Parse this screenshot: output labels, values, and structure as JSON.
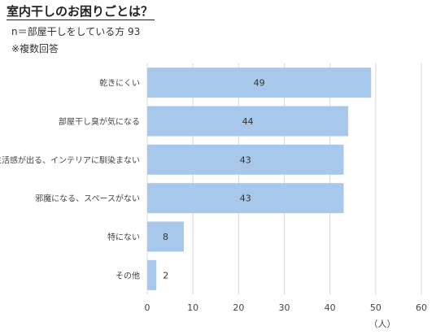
{
  "header": {
    "title": "室内干しのお困りごとは？",
    "subtitle": "n＝部屋干しをしている方 93",
    "note": "※複数回答"
  },
  "chart_data": {
    "type": "bar",
    "orientation": "horizontal",
    "categories": [
      "乾きにくい",
      "部屋干し臭が気になる",
      "生活感が出る、インテリアに馴染まない",
      "邪魔になる、スペースがない",
      "特にない",
      "その他"
    ],
    "values": [
      49,
      44,
      43,
      43,
      8,
      2
    ],
    "x_ticks": [
      0,
      10,
      20,
      30,
      40,
      50,
      60
    ],
    "xlim": [
      0,
      60
    ],
    "xlabel": "（人）",
    "grid": true,
    "bar_color": "#a7c8ea",
    "grid_color": "#d9d9d9"
  }
}
